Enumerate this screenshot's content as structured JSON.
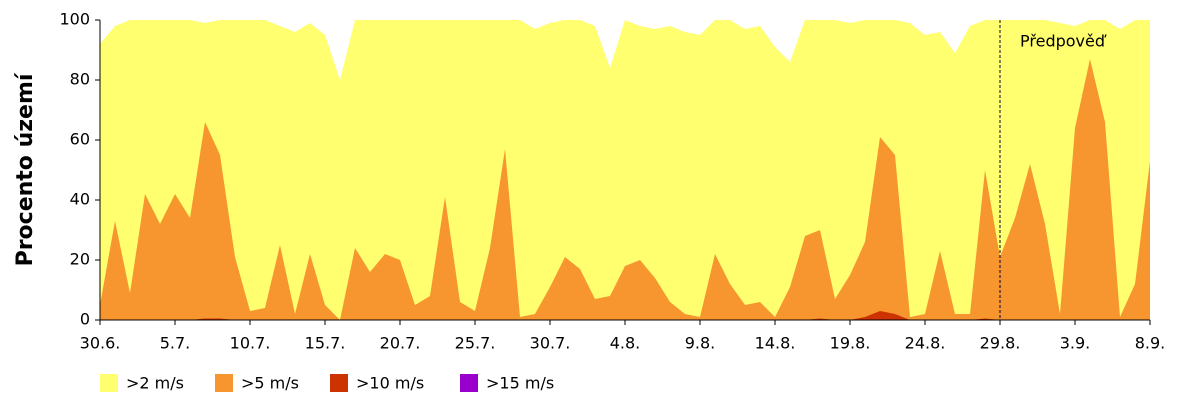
{
  "chart_data": {
    "type": "area",
    "y_label": "Procento území",
    "annotation": {
      "text": "Předpověď",
      "x": 60
    },
    "categories": [
      "30.6.",
      null,
      null,
      null,
      null,
      "5.7.",
      null,
      null,
      null,
      null,
      "10.7.",
      null,
      null,
      null,
      null,
      "15.7.",
      null,
      null,
      null,
      null,
      "20.7.",
      null,
      null,
      null,
      null,
      "25.7.",
      null,
      null,
      null,
      null,
      "30.7.",
      null,
      null,
      null,
      null,
      "4.8.",
      null,
      null,
      null,
      null,
      "9.8.",
      null,
      null,
      null,
      null,
      "14.8.",
      null,
      null,
      null,
      null,
      "19.8.",
      null,
      null,
      null,
      null,
      "24.8.",
      null,
      null,
      null,
      null,
      "29.8.",
      null,
      null,
      null,
      null,
      "3.9.",
      null,
      null,
      null,
      null,
      "8.9."
    ],
    "series": [
      {
        "name": ">2 m/s",
        "color": "#ffff70",
        "values": [
          92,
          98,
          100,
          100,
          100,
          100,
          100,
          99,
          100,
          100,
          100,
          100,
          98,
          96,
          99,
          95,
          80,
          100,
          100,
          100,
          100,
          100,
          100,
          100,
          100,
          100,
          100,
          100,
          100,
          97,
          99,
          100,
          100,
          98,
          84,
          100,
          98,
          97,
          98,
          96,
          95,
          100,
          100,
          97,
          98,
          91,
          86,
          100,
          100,
          100,
          99,
          100,
          100,
          100,
          99,
          95,
          96,
          89,
          98,
          100,
          100,
          100,
          100,
          100,
          99,
          98,
          100,
          100,
          97,
          100,
          100
        ]
      },
      {
        "name": ">5 m/s",
        "color": "#f7962f",
        "values": [
          5,
          33,
          9,
          42,
          32,
          42,
          34,
          66,
          55,
          21,
          3,
          4,
          25,
          2,
          22,
          5,
          0,
          24,
          16,
          22,
          20,
          5,
          8,
          41,
          6,
          3,
          24,
          57,
          1,
          2,
          11,
          21,
          17,
          7,
          8,
          18,
          20,
          14,
          6,
          2,
          1,
          22,
          12,
          5,
          6,
          1,
          11,
          28,
          30,
          7,
          15,
          26,
          61,
          55,
          1,
          2,
          23,
          2,
          2,
          50,
          21,
          34,
          52,
          32,
          2,
          64,
          87,
          66,
          1,
          12,
          53
        ]
      },
      {
        "name": ">10 m/s",
        "color": "#cc3300",
        "values": [
          0,
          0,
          0,
          0,
          0,
          0,
          0,
          0.5,
          0.5,
          0,
          0,
          0,
          0,
          0,
          0,
          0,
          0,
          0,
          0,
          0,
          0,
          0,
          0,
          0,
          0,
          0,
          0,
          0,
          0,
          0,
          0,
          0,
          0,
          0,
          0,
          0,
          0,
          0,
          0,
          0,
          0,
          0,
          0,
          0,
          0,
          0,
          0,
          0,
          0.5,
          0,
          0,
          1,
          3,
          2,
          0,
          0,
          0,
          0,
          0,
          0.5,
          0,
          0,
          0,
          0,
          0,
          0,
          0,
          0,
          0,
          0,
          0
        ]
      },
      {
        "name": ">15 m/s",
        "color": "#9900cc",
        "values": [
          0,
          0,
          0,
          0,
          0,
          0,
          0,
          0,
          0,
          0,
          0,
          0,
          0,
          0,
          0,
          0,
          0,
          0,
          0,
          0,
          0,
          0,
          0,
          0,
          0,
          0,
          0,
          0,
          0,
          0,
          0,
          0,
          0,
          0,
          0,
          0,
          0,
          0,
          0,
          0,
          0,
          0,
          0,
          0,
          0,
          0,
          0,
          0,
          0,
          0,
          0,
          0,
          0,
          0,
          0,
          0,
          0,
          0,
          0,
          0,
          0,
          0,
          0,
          0,
          0,
          0,
          0,
          0,
          0,
          0,
          0
        ]
      }
    ],
    "ylim": [
      0,
      100
    ],
    "yticks": [
      0,
      20,
      40,
      60,
      80,
      100
    ],
    "grid": false
  }
}
